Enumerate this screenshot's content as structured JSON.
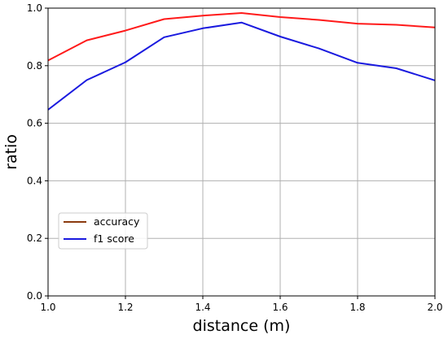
{
  "chart_data": {
    "type": "line",
    "title": "",
    "xlabel": "distance (m)",
    "ylabel": "ratio",
    "xlim": [
      1.0,
      2.0
    ],
    "ylim": [
      0.0,
      1.0
    ],
    "x_ticks": [
      1.0,
      1.2,
      1.4,
      1.6,
      1.8,
      2.0
    ],
    "y_ticks": [
      0.0,
      0.2,
      0.4,
      0.6,
      0.8,
      1.0
    ],
    "x_tick_labels": [
      "1.0",
      "1.2",
      "1.4",
      "1.6",
      "1.8",
      "2.0"
    ],
    "y_tick_labels": [
      "0.0",
      "0.2",
      "0.4",
      "0.6",
      "0.8",
      "1.0"
    ],
    "grid": true,
    "legend_position": "lower-left",
    "x": [
      1.0,
      1.1,
      1.2,
      1.3,
      1.4,
      1.5,
      1.6,
      1.7,
      1.8,
      1.9,
      2.0
    ],
    "series": [
      {
        "name": "accuracy",
        "color": "#ff1a1a",
        "legend_color": "#8b3a0f",
        "values": [
          0.818,
          0.888,
          0.922,
          0.962,
          0.974,
          0.983,
          0.969,
          0.959,
          0.946,
          0.942,
          0.933
        ]
      },
      {
        "name": "f1 score",
        "color": "#1a1adf",
        "legend_color": "#1a1adf",
        "values": [
          0.647,
          0.75,
          0.812,
          0.899,
          0.93,
          0.95,
          0.901,
          0.86,
          0.81,
          0.791,
          0.749
        ]
      }
    ]
  }
}
